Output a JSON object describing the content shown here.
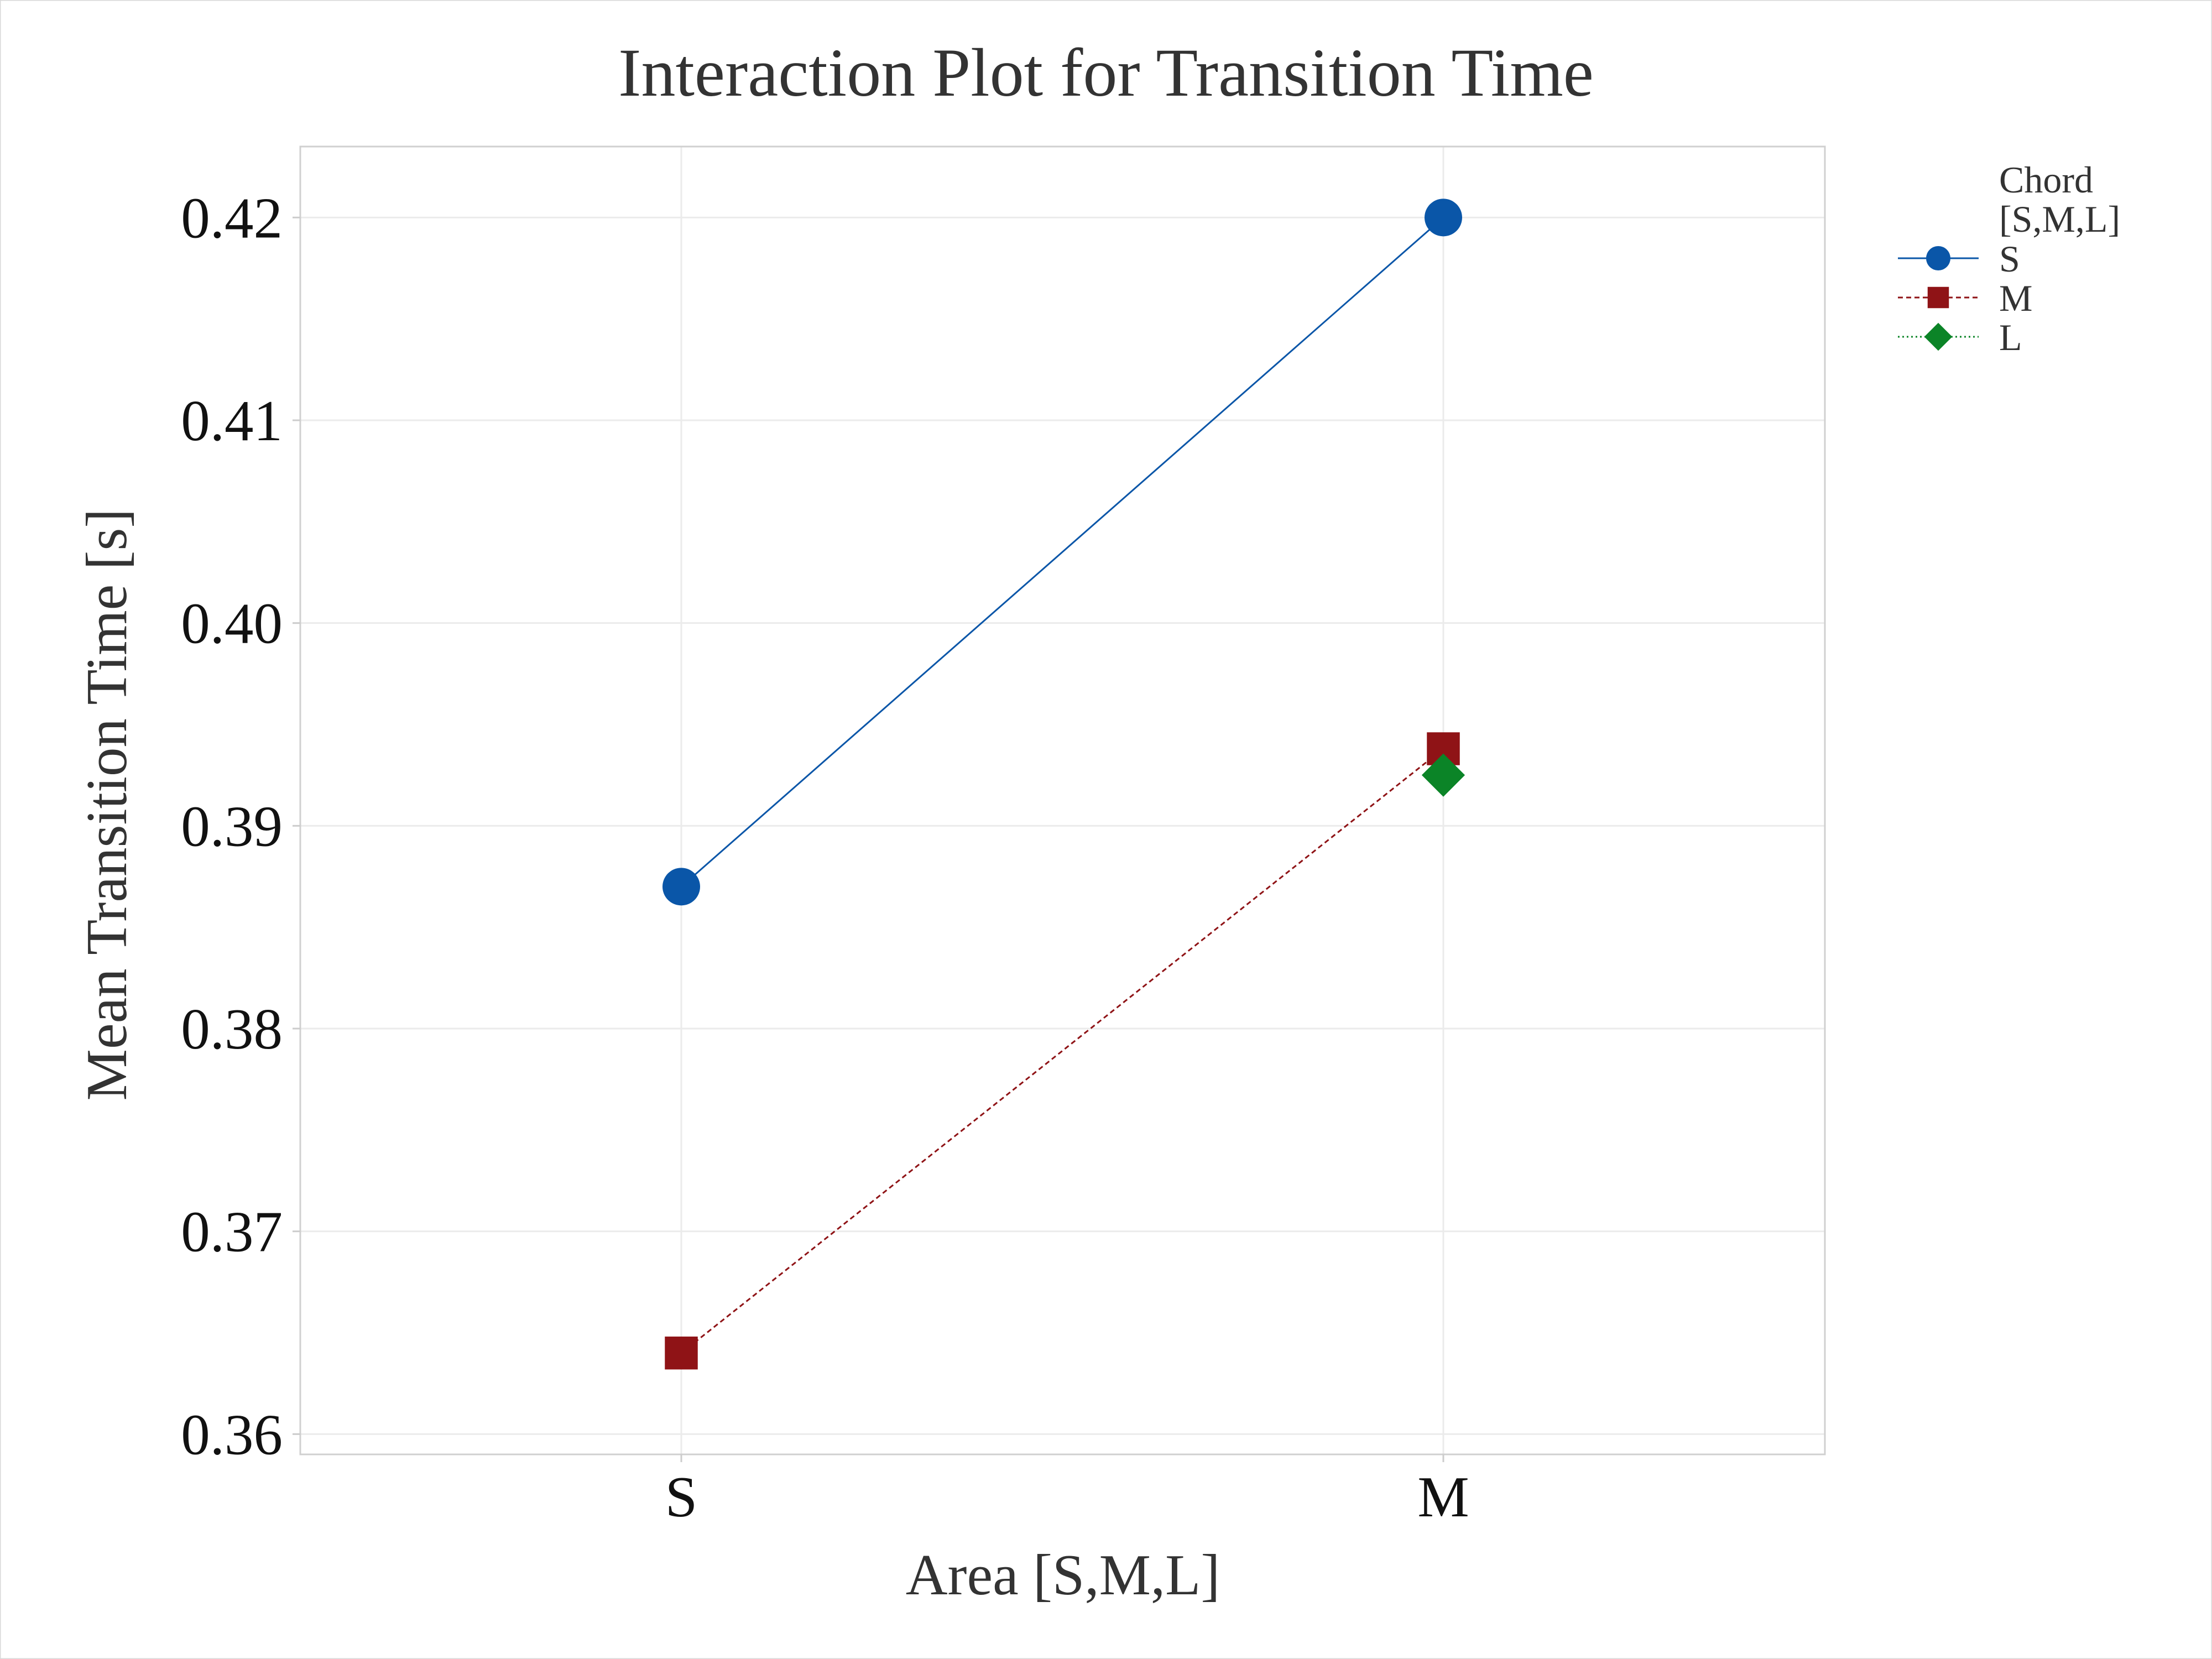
{
  "chart_data": {
    "type": "line",
    "title": "Interaction Plot for Transition Time",
    "xlabel": "Area [S,M,L]",
    "ylabel": "Mean Transition Time [s]",
    "categories": [
      "S",
      "M"
    ],
    "ylim": [
      0.359,
      0.4235
    ],
    "yticks": [
      "0.36",
      "0.37",
      "0.38",
      "0.39",
      "0.40",
      "0.41",
      "0.42"
    ],
    "grid": true,
    "legend": {
      "title_lines": [
        "Chord",
        "[S,M,L]"
      ],
      "placement": "right-top"
    },
    "series": [
      {
        "name": "S",
        "values": [
          0.387,
          0.42
        ],
        "color": "#0a56a8",
        "marker": "circle",
        "line_style": "solid"
      },
      {
        "name": "M",
        "values": [
          0.364,
          0.3938
        ],
        "color": "#8f1316",
        "marker": "square",
        "line_style": "dashed"
      },
      {
        "name": "L",
        "values": [
          null,
          0.3925
        ],
        "color": "#0b8427",
        "marker": "diamond",
        "line_style": "dotted"
      }
    ]
  }
}
